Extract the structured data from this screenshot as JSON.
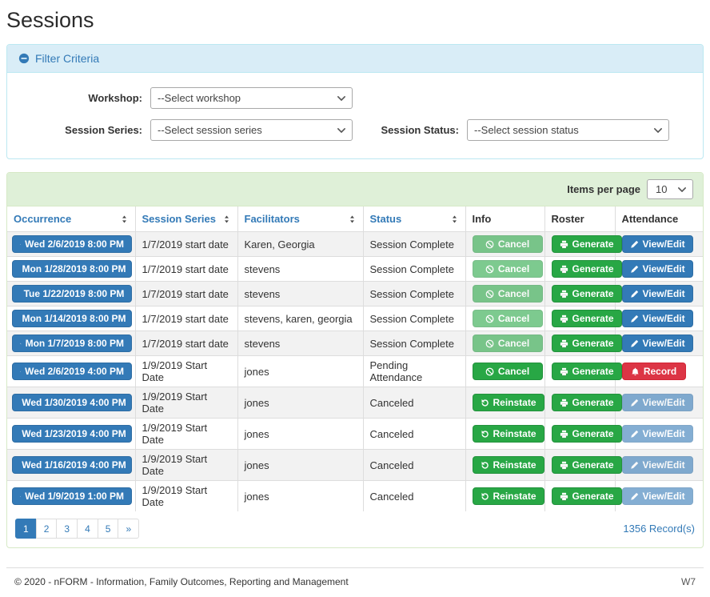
{
  "page": {
    "title": "Sessions"
  },
  "colors": {
    "accent_blue": "#337ab7",
    "success_green": "#28a745",
    "danger_red": "#dc3545",
    "info_panel_bg": "#d9edf7",
    "info_panel_border": "#bce8f1",
    "success_panel_bg": "#dff0d8",
    "success_panel_border": "#d6e9c6"
  },
  "filter": {
    "heading": "Filter Criteria",
    "collapse_icon": "minus-circle-icon",
    "fields": {
      "workshop": {
        "label": "Workshop:",
        "value": "--Select workshop"
      },
      "session_series": {
        "label": "Session Series:",
        "value": "--Select session series"
      },
      "session_status": {
        "label": "Session Status:",
        "value": "--Select session status"
      }
    }
  },
  "table": {
    "items_per_page_label": "Items per page",
    "items_per_page_value": "10",
    "columns": [
      {
        "label": "Occurrence",
        "sortable": true
      },
      {
        "label": "Session Series",
        "sortable": true
      },
      {
        "label": "Facilitators",
        "sortable": true
      },
      {
        "label": "Status",
        "sortable": true
      },
      {
        "label": "Info",
        "sortable": false
      },
      {
        "label": "Roster",
        "sortable": false
      },
      {
        "label": "Attendance",
        "sortable": false
      }
    ],
    "rows": [
      {
        "occurrence": "Wed 2/6/2019 8:00 PM",
        "series": "1/7/2019 start date",
        "facilitators": "Karen, Georgia",
        "status": "Session Complete",
        "info": {
          "label": "Cancel",
          "icon": "ban-icon",
          "disabled": true
        },
        "roster": {
          "label": "Generate",
          "icon": "print-icon"
        },
        "attendance": {
          "label": "View/Edit",
          "icon": "pencil-icon",
          "variant": "primary",
          "disabled": false
        }
      },
      {
        "occurrence": "Mon 1/28/2019 8:00 PM",
        "series": "1/7/2019 start date",
        "facilitators": "stevens",
        "status": "Session Complete",
        "info": {
          "label": "Cancel",
          "icon": "ban-icon",
          "disabled": true
        },
        "roster": {
          "label": "Generate",
          "icon": "print-icon"
        },
        "attendance": {
          "label": "View/Edit",
          "icon": "pencil-icon",
          "variant": "primary",
          "disabled": false
        }
      },
      {
        "occurrence": "Tue 1/22/2019 8:00 PM",
        "series": "1/7/2019 start date",
        "facilitators": "stevens",
        "status": "Session Complete",
        "info": {
          "label": "Cancel",
          "icon": "ban-icon",
          "disabled": true
        },
        "roster": {
          "label": "Generate",
          "icon": "print-icon"
        },
        "attendance": {
          "label": "View/Edit",
          "icon": "pencil-icon",
          "variant": "primary",
          "disabled": false
        }
      },
      {
        "occurrence": "Mon 1/14/2019 8:00 PM",
        "series": "1/7/2019 start date",
        "facilitators": "stevens, karen, georgia",
        "status": "Session Complete",
        "info": {
          "label": "Cancel",
          "icon": "ban-icon",
          "disabled": true
        },
        "roster": {
          "label": "Generate",
          "icon": "print-icon"
        },
        "attendance": {
          "label": "View/Edit",
          "icon": "pencil-icon",
          "variant": "primary",
          "disabled": false
        }
      },
      {
        "occurrence": "Mon 1/7/2019 8:00 PM",
        "series": "1/7/2019 start date",
        "facilitators": "stevens",
        "status": "Session Complete",
        "info": {
          "label": "Cancel",
          "icon": "ban-icon",
          "disabled": true
        },
        "roster": {
          "label": "Generate",
          "icon": "print-icon"
        },
        "attendance": {
          "label": "View/Edit",
          "icon": "pencil-icon",
          "variant": "primary",
          "disabled": false
        }
      },
      {
        "occurrence": "Wed 2/6/2019 4:00 PM",
        "series": "1/9/2019 Start Date",
        "facilitators": "jones",
        "status": "Pending Attendance",
        "info": {
          "label": "Cancel",
          "icon": "ban-icon",
          "disabled": false
        },
        "roster": {
          "label": "Generate",
          "icon": "print-icon"
        },
        "attendance": {
          "label": "Record",
          "icon": "bell-icon",
          "variant": "danger",
          "disabled": false
        }
      },
      {
        "occurrence": "Wed 1/30/2019 4:00 PM",
        "series": "1/9/2019 Start Date",
        "facilitators": "jones",
        "status": "Canceled",
        "info": {
          "label": "Reinstate",
          "icon": "undo-icon",
          "disabled": false
        },
        "roster": {
          "label": "Generate",
          "icon": "print-icon"
        },
        "attendance": {
          "label": "View/Edit",
          "icon": "pencil-icon",
          "variant": "primary",
          "disabled": true
        }
      },
      {
        "occurrence": "Wed 1/23/2019 4:00 PM",
        "series": "1/9/2019 Start Date",
        "facilitators": "jones",
        "status": "Canceled",
        "info": {
          "label": "Reinstate",
          "icon": "undo-icon",
          "disabled": false
        },
        "roster": {
          "label": "Generate",
          "icon": "print-icon"
        },
        "attendance": {
          "label": "View/Edit",
          "icon": "pencil-icon",
          "variant": "primary",
          "disabled": true
        }
      },
      {
        "occurrence": "Wed 1/16/2019 4:00 PM",
        "series": "1/9/2019 Start Date",
        "facilitators": "jones",
        "status": "Canceled",
        "info": {
          "label": "Reinstate",
          "icon": "undo-icon",
          "disabled": false
        },
        "roster": {
          "label": "Generate",
          "icon": "print-icon"
        },
        "attendance": {
          "label": "View/Edit",
          "icon": "pencil-icon",
          "variant": "primary",
          "disabled": true
        }
      },
      {
        "occurrence": "Wed 1/9/2019 1:00 PM",
        "series": "1/9/2019 Start Date",
        "facilitators": "jones",
        "status": "Canceled",
        "info": {
          "label": "Reinstate",
          "icon": "undo-icon",
          "disabled": false
        },
        "roster": {
          "label": "Generate",
          "icon": "print-icon"
        },
        "attendance": {
          "label": "View/Edit",
          "icon": "pencil-icon",
          "variant": "primary",
          "disabled": true
        }
      }
    ],
    "occurrence_icon": "search-icon",
    "pagination": {
      "pages": [
        "1",
        "2",
        "3",
        "4",
        "5"
      ],
      "next": "»",
      "active": "1"
    },
    "record_count": "1356 Record(s)"
  },
  "footer": {
    "copyright": "© 2020 - nFORM - Information, Family Outcomes, Reporting and Management",
    "environment": "W7"
  }
}
